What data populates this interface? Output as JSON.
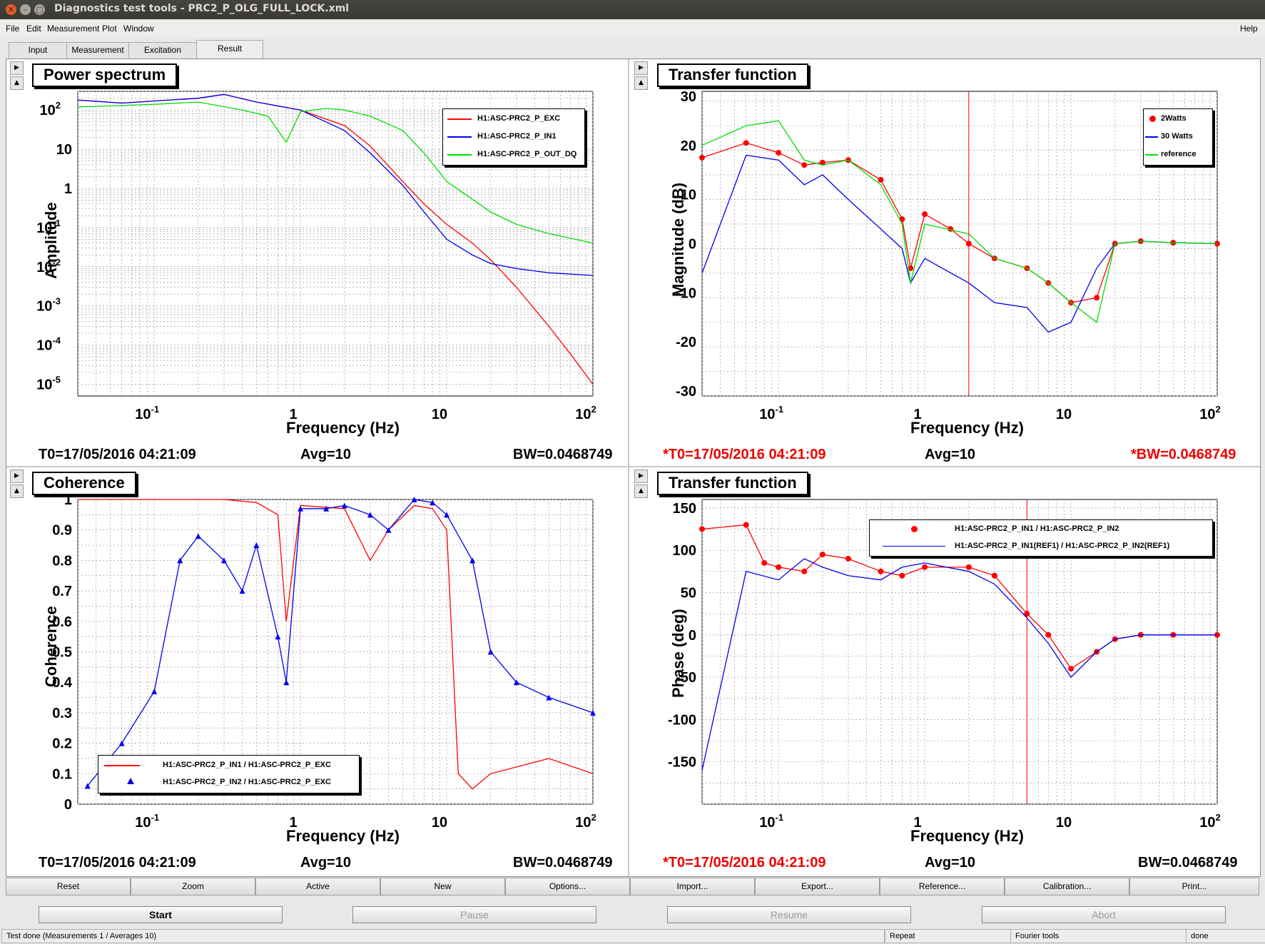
{
  "window": {
    "title": "Diagnostics test tools - PRC2_P_OLG_FULL_LOCK.xml"
  },
  "menu": {
    "file": "File",
    "edit": "Edit",
    "measurement": "Measurement",
    "plot": "Plot",
    "window": "Window",
    "help": "Help"
  },
  "tabs": [
    "Input",
    "Measurement",
    "Excitation",
    "Result"
  ],
  "panels": {
    "tl": {
      "title": "Power spectrum",
      "ylabel": "Amplitude",
      "xlabel": "Frequency (Hz)",
      "t0": "T0=17/05/2016 04:21:09",
      "avg": "Avg=10",
      "bw": "BW=0.0468749",
      "legend": [
        "H1:ASC-PRC2_P_EXC",
        "H1:ASC-PRC2_P_IN1",
        "H1:ASC-PRC2_P_OUT_DQ"
      ]
    },
    "tr": {
      "title": "Transfer function",
      "ylabel": "Magnitude (dB)",
      "xlabel": "Frequency (Hz)",
      "t0": "*T0=17/05/2016 04:21:09",
      "avg": "Avg=10",
      "bw": "*BW=0.0468749",
      "legend": [
        "2Watts",
        "30 Watts",
        "reference"
      ]
    },
    "bl": {
      "title": "Coherence",
      "ylabel": "Coherence",
      "xlabel": "Frequency (Hz)",
      "t0": "T0=17/05/2016 04:21:09",
      "avg": "Avg=10",
      "bw": "BW=0.0468749",
      "legend": [
        "H1:ASC-PRC2_P_IN1 / H1:ASC-PRC2_P_EXC",
        "H1:ASC-PRC2_P_IN2 / H1:ASC-PRC2_P_EXC"
      ]
    },
    "br": {
      "title": "Transfer function",
      "ylabel": "Phase (deg)",
      "xlabel": "Frequency (Hz)",
      "t0": "*T0=17/05/2016 04:21:09",
      "avg": "Avg=10",
      "bw": "BW=0.0468749",
      "legend": [
        "H1:ASC-PRC2_P_IN1 / H1:ASC-PRC2_P_IN2",
        "H1:ASC-PRC2_P_IN1(REF1) / H1:ASC-PRC2_P_IN2(REF1)"
      ]
    }
  },
  "xticks": [
    "10",
    "1",
    "10",
    "10"
  ],
  "xtick_exp": [
    "-1",
    "",
    "",
    "2"
  ],
  "buttons": [
    "Reset",
    "Zoom",
    "Active",
    "New",
    "Options...",
    "Import...",
    "Export...",
    "Reference...",
    "Calibration...",
    "Print..."
  ],
  "controls": {
    "start": "Start",
    "pause": "Pause",
    "resume": "Resume",
    "abort": "Abort"
  },
  "status": {
    "left": "Test done (Measurements 1 / Averages 10)",
    "repeat": "Repeat",
    "tools": "Fourier tools",
    "done": "done"
  },
  "colors": {
    "red": "#ff0000",
    "blue": "#0000ee",
    "green": "#00dd00"
  },
  "chart_data": [
    {
      "type": "line",
      "title": "Power spectrum",
      "xlabel": "Frequency (Hz)",
      "ylabel": "Amplitude",
      "xscale": "log",
      "yscale": "log",
      "xlim": [
        0.03,
        100
      ],
      "ylim": [
        5e-06,
        300
      ],
      "yticks": [
        "10^2",
        "10",
        "1",
        "10^-1",
        "10^-2",
        "10^-3",
        "10^-4",
        "10^-5"
      ],
      "series": [
        {
          "name": "H1:ASC-PRC2_P_EXC",
          "color": "#ff0000",
          "x": [
            0.03,
            0.06,
            0.1,
            0.2,
            0.3,
            0.5,
            1,
            2,
            3,
            5,
            7,
            10,
            15,
            20,
            30,
            50,
            70,
            100
          ],
          "y": [
            180,
            150,
            170,
            200,
            250,
            160,
            100,
            40,
            12,
            1.5,
            0.4,
            0.12,
            0.04,
            0.015,
            0.003,
            0.0003,
            6e-05,
            1e-05
          ]
        },
        {
          "name": "H1:ASC-PRC2_P_IN1",
          "color": "#0000ee",
          "x": [
            0.03,
            0.06,
            0.1,
            0.2,
            0.3,
            0.5,
            1,
            2,
            3,
            5,
            7,
            10,
            15,
            20,
            30,
            50,
            100
          ],
          "y": [
            180,
            150,
            170,
            200,
            250,
            160,
            100,
            30,
            8,
            1.2,
            0.25,
            0.05,
            0.02,
            0.012,
            0.009,
            0.007,
            0.006
          ]
        },
        {
          "name": "H1:ASC-PRC2_P_OUT_DQ",
          "color": "#00dd00",
          "x": [
            0.03,
            0.06,
            0.1,
            0.2,
            0.4,
            0.6,
            0.8,
            1,
            1.5,
            2,
            3,
            5,
            7,
            10,
            20,
            30,
            50,
            100
          ],
          "y": [
            120,
            130,
            140,
            160,
            100,
            70,
            15,
            90,
            110,
            100,
            70,
            30,
            8,
            1.5,
            0.25,
            0.12,
            0.07,
            0.04
          ]
        }
      ]
    },
    {
      "type": "line",
      "title": "Transfer function",
      "xlabel": "Frequency (Hz)",
      "ylabel": "Magnitude (dB)",
      "xscale": "log",
      "xlim": [
        0.03,
        100
      ],
      "ylim": [
        -31,
        31
      ],
      "yticks": [
        30,
        20,
        10,
        0,
        -10,
        -20,
        -30
      ],
      "series": [
        {
          "name": "2Watts",
          "color": "#ff0000",
          "marker": "circle",
          "x": [
            0.03,
            0.06,
            0.1,
            0.15,
            0.2,
            0.3,
            0.5,
            0.7,
            0.8,
            1,
            1.5,
            2,
            3,
            5,
            7,
            10,
            15,
            20,
            30,
            50,
            100
          ],
          "y": [
            17.5,
            20.5,
            18.5,
            16,
            16.5,
            17,
            13,
            5,
            -5,
            6,
            3,
            0,
            -3,
            -5,
            -8,
            -12,
            -11,
            0,
            0.5,
            0.2,
            0
          ]
        },
        {
          "name": "30 Watts",
          "color": "#0000ee",
          "x": [
            0.03,
            0.06,
            0.1,
            0.15,
            0.2,
            0.3,
            0.5,
            0.7,
            0.8,
            1,
            2,
            3,
            5,
            7,
            10,
            15,
            20,
            30,
            50,
            100
          ],
          "y": [
            -6,
            18,
            17,
            12,
            14,
            9,
            3,
            -1,
            -8,
            -3,
            -8,
            -12,
            -13,
            -18,
            -16,
            -5,
            0,
            0.5,
            0.2,
            0
          ]
        },
        {
          "name": "reference",
          "color": "#00dd00",
          "x": [
            0.03,
            0.06,
            0.1,
            0.15,
            0.2,
            0.3,
            0.5,
            0.7,
            0.8,
            1,
            2,
            3,
            5,
            7,
            10,
            15,
            20,
            30,
            50,
            100
          ],
          "y": [
            20,
            24,
            25,
            17,
            16,
            17,
            12,
            4,
            -8,
            4,
            2,
            -3,
            -5,
            -8,
            -12,
            -16,
            0,
            0.5,
            0.2,
            0
          ]
        }
      ]
    },
    {
      "type": "line",
      "title": "Coherence",
      "xlabel": "Frequency (Hz)",
      "ylabel": "Coherence",
      "xscale": "log",
      "xlim": [
        0.03,
        100
      ],
      "ylim": [
        0,
        1
      ],
      "yticks": [
        1,
        0.9,
        0.8,
        0.7,
        0.6,
        0.5,
        0.4,
        0.3,
        0.2,
        0.1,
        0
      ],
      "series": [
        {
          "name": "H1:ASC-PRC2_P_IN1 / H1:ASC-PRC2_P_EXC",
          "color": "#ff0000",
          "x": [
            0.03,
            0.1,
            0.3,
            0.5,
            0.7,
            0.8,
            1,
            2,
            3,
            4,
            6,
            8,
            10,
            12,
            15,
            20,
            50,
            100
          ],
          "y": [
            1,
            1,
            1,
            0.99,
            0.95,
            0.6,
            0.98,
            0.97,
            0.8,
            0.9,
            0.98,
            0.97,
            0.9,
            0.1,
            0.05,
            0.1,
            0.15,
            0.1
          ]
        },
        {
          "name": "H1:ASC-PRC2_P_IN2 / H1:ASC-PRC2_P_EXC",
          "color": "#0000ee",
          "marker": "triangle",
          "x": [
            0.035,
            0.06,
            0.1,
            0.15,
            0.2,
            0.3,
            0.4,
            0.5,
            0.7,
            0.8,
            1,
            1.5,
            2,
            3,
            4,
            6,
            8,
            10,
            15,
            20,
            30,
            50,
            100
          ],
          "y": [
            0.06,
            0.2,
            0.37,
            0.8,
            0.88,
            0.8,
            0.7,
            0.85,
            0.55,
            0.4,
            0.97,
            0.97,
            0.98,
            0.95,
            0.9,
            1,
            0.99,
            0.95,
            0.8,
            0.5,
            0.4,
            0.35,
            0.3
          ]
        }
      ]
    },
    {
      "type": "line",
      "title": "Transfer function",
      "xlabel": "Frequency (Hz)",
      "ylabel": "Phase (deg)",
      "xscale": "log",
      "xlim": [
        0.03,
        100
      ],
      "ylim": [
        -200,
        160
      ],
      "yticks": [
        150,
        100,
        50,
        0,
        -50,
        -100,
        -150
      ],
      "series": [
        {
          "name": "H1:ASC-PRC2_P_IN1 / H1:ASC-PRC2_P_IN2",
          "color": "#ff0000",
          "marker": "circle",
          "x": [
            0.03,
            0.06,
            0.08,
            0.1,
            0.15,
            0.2,
            0.3,
            0.5,
            0.7,
            1,
            2,
            3,
            5,
            7,
            10,
            15,
            20,
            30,
            50,
            100
          ],
          "y": [
            125,
            130,
            85,
            80,
            75,
            95,
            90,
            75,
            70,
            80,
            80,
            70,
            25,
            0,
            -40,
            -20,
            -5,
            0,
            0,
            0
          ]
        },
        {
          "name": "H1:ASC-PRC2_P_IN1(REF1) / H1:ASC-PRC2_P_IN2(REF1)",
          "color": "#0000ee",
          "x": [
            0.03,
            0.06,
            0.1,
            0.15,
            0.2,
            0.3,
            0.5,
            0.7,
            1,
            2,
            3,
            5,
            7,
            10,
            15,
            20,
            30,
            50,
            100
          ],
          "y": [
            -160,
            75,
            65,
            90,
            80,
            70,
            65,
            80,
            85,
            75,
            60,
            20,
            -10,
            -50,
            -20,
            -5,
            0,
            0,
            0
          ]
        }
      ]
    }
  ]
}
